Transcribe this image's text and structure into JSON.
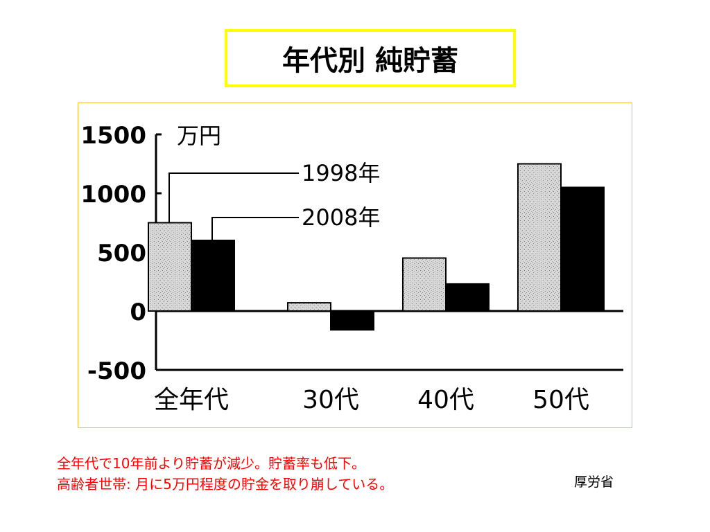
{
  "slide": {
    "title": "年代別 純貯蓄",
    "caption_line1": "全年代で10年前より貯蓄が減少。貯蓄率も低下。",
    "caption_line2": "高齢者世帯: 月に5万円程度の貯金を取り崩している。",
    "source": "厚労省"
  },
  "chart_data": {
    "type": "bar",
    "title": "",
    "xlabel": "",
    "ylabel": "万円",
    "ylim": [
      -500,
      1500
    ],
    "yticks": [
      "1500",
      "1000",
      "500",
      "0",
      "-500"
    ],
    "categories": [
      "全年代",
      "30代",
      "40代",
      "50代"
    ],
    "series": [
      {
        "name": "1998年",
        "values": [
          750,
          70,
          450,
          1250
        ],
        "color": "#cfcfcf"
      },
      {
        "name": "2008年",
        "values": [
          600,
          -160,
          230,
          1050
        ],
        "color": "#000000"
      }
    ],
    "grid": false,
    "legend": "callout labels near first group"
  }
}
